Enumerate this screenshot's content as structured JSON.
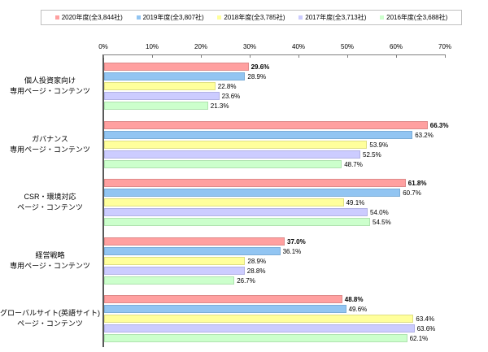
{
  "chart_data": {
    "type": "bar",
    "orientation": "horizontal",
    "title": "",
    "xlabel": "",
    "ylabel": "",
    "xlim": [
      0,
      70
    ],
    "x_ticks": [
      "0%",
      "10%",
      "20%",
      "30%",
      "40%",
      "50%",
      "60%",
      "70%"
    ],
    "grid": false,
    "legend_position": "top",
    "value_suffix": "%",
    "categories": [
      "個人投資家向け\n専用ページ・コンテンツ",
      "ガバナンス\n専用ページ・コンテンツ",
      "CSR・環境対応\nページ・コンテンツ",
      "経営戦略\n専用ページ・コンテンツ",
      "グローバルサイト(英語サイト)\nページ・コンテンツ"
    ],
    "series": [
      {
        "name": "2020年度(全3,844社)",
        "color": "#ffa0a0",
        "border_color": "#de8a8a",
        "bold_labels": true,
        "values": [
          29.6,
          66.3,
          61.8,
          37.0,
          48.8
        ],
        "labels": [
          "29.6%",
          "66.3%",
          "61.8%",
          "37.0%",
          "48.8%"
        ]
      },
      {
        "name": "2019年度(全3,807社)",
        "color": "#92c5f2",
        "border_color": "#7badd8",
        "bold_labels": false,
        "values": [
          28.9,
          63.2,
          60.7,
          36.1,
          49.6
        ],
        "labels": [
          "28.9%",
          "63.2%",
          "60.7%",
          "36.1%",
          "49.6%"
        ]
      },
      {
        "name": "2018年度(全3,785社)",
        "color": "#ffff9c",
        "border_color": "#dfdf84",
        "bold_labels": false,
        "values": [
          22.8,
          53.9,
          49.1,
          28.9,
          63.4
        ],
        "labels": [
          "22.8%",
          "53.9%",
          "49.1%",
          "28.9%",
          "63.4%"
        ]
      },
      {
        "name": "2017年度(全3,713社)",
        "color": "#ccccff",
        "border_color": "#b2b2e4",
        "bold_labels": false,
        "values": [
          23.6,
          52.5,
          54.0,
          28.8,
          63.6
        ],
        "labels": [
          "23.6%",
          "52.5%",
          "54.0%",
          "28.8%",
          "63.6%"
        ]
      },
      {
        "name": "2016年度(全3,688社)",
        "color": "#ccffcc",
        "border_color": "#afe2af",
        "bold_labels": false,
        "values": [
          21.3,
          48.7,
          54.5,
          26.7,
          62.1
        ],
        "labels": [
          "21.3%",
          "48.7%",
          "54.5%",
          "26.7%",
          "62.1%"
        ]
      }
    ],
    "colors": {
      "axis_line": "#808080",
      "axis_vertical": "#595959",
      "legend_border": "#c0c0c0",
      "background": "#ffffff"
    }
  }
}
